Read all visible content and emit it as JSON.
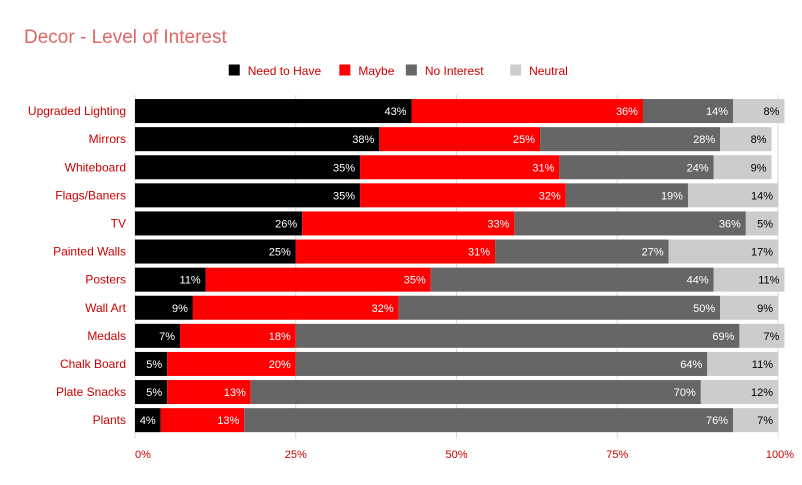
{
  "chart_data": {
    "type": "bar",
    "orientation": "horizontal",
    "stacked": "percent",
    "title": "Decor - Level of Interest",
    "xlabel": "",
    "ylabel": "",
    "xlim": [
      0,
      100
    ],
    "xticks": [
      "0%",
      "25%",
      "50%",
      "75%",
      "100%"
    ],
    "legend_position": "top",
    "grid": true,
    "categories": [
      "Upgraded Lighting",
      "Mirrors",
      "Whiteboard",
      "Flags/Baners",
      "TV",
      "Painted Walls",
      "Posters",
      "Wall Art",
      "Medals",
      "Chalk Board",
      "Plate Snacks",
      "Plants"
    ],
    "series": [
      {
        "name": "Need to Have",
        "color": "#000000",
        "label_color": "#ffffff",
        "values": [
          43,
          38,
          35,
          35,
          26,
          25,
          11,
          9,
          7,
          5,
          5,
          4
        ]
      },
      {
        "name": "Maybe",
        "color": "#ff0000",
        "label_color": "#ffffff",
        "values": [
          36,
          25,
          31,
          32,
          33,
          31,
          35,
          32,
          18,
          20,
          13,
          13
        ]
      },
      {
        "name": "No Interest",
        "color": "#666666",
        "label_color": "#ffffff",
        "values": [
          14,
          28,
          24,
          19,
          36,
          27,
          44,
          50,
          69,
          64,
          70,
          76
        ]
      },
      {
        "name": "Neutral",
        "color": "#cccccc",
        "label_color": "#000000",
        "values": [
          8,
          8,
          9,
          14,
          5,
          17,
          11,
          9,
          7,
          11,
          12,
          7
        ]
      }
    ]
  },
  "colors": {
    "title": "#e06666",
    "category_label": "#cc0000",
    "tick_label": "#cc0000",
    "legend_text": "#cc0000",
    "grid": "#d9d9d9"
  }
}
